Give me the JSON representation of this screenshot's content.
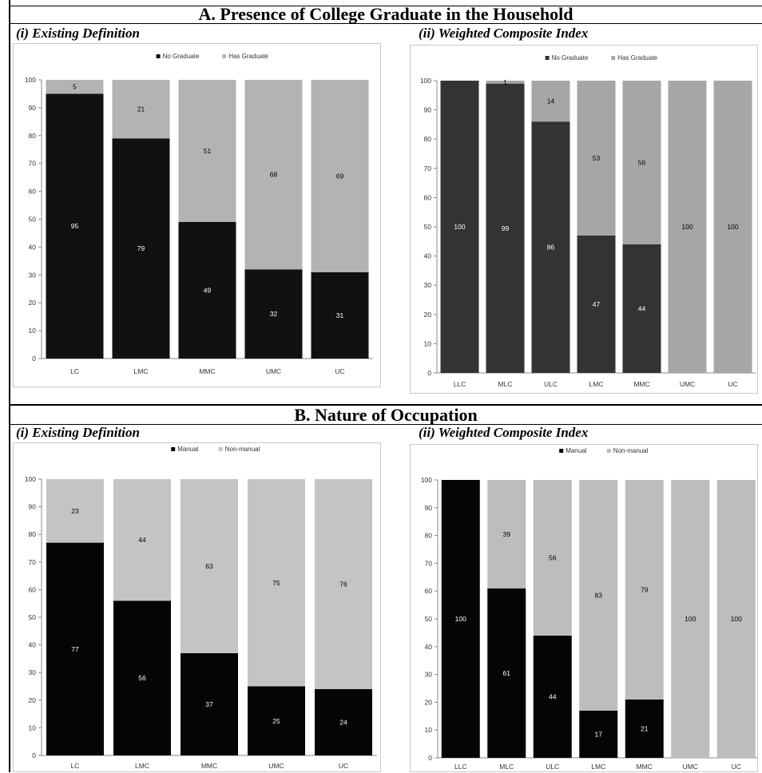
{
  "sections": [
    {
      "title": "A.  Presence of College Graduate in the Household",
      "panels": [
        {
          "title": "(i)  Existing Definition"
        },
        {
          "title": "(ii)  Weighted Composite Index"
        }
      ]
    },
    {
      "title": "B.  Nature of Occupation",
      "panels": [
        {
          "title": "(i)  Existing Definition"
        },
        {
          "title": "(ii)  Weighted Composite Index"
        }
      ]
    }
  ],
  "chart_data": [
    {
      "type": "bar",
      "stacked": true,
      "title": "",
      "xlabel": "",
      "ylabel": "",
      "categories": [
        "LC",
        "LMC",
        "MMC",
        "UMC",
        "UC"
      ],
      "series": [
        {
          "name": "No Graduate",
          "color": "#111111",
          "label_color": "#ffffff",
          "values": [
            95,
            79,
            49,
            32,
            31
          ]
        },
        {
          "name": "Has Graduate",
          "color": "#b3b3b3",
          "label_color": "#000000",
          "values": [
            5,
            21,
            51,
            68,
            69
          ]
        }
      ],
      "ylim": [
        0,
        100
      ],
      "yticks": [
        "0",
        "10",
        "20",
        "30",
        "40",
        "50",
        "60",
        "70",
        "80",
        "90",
        "100"
      ],
      "legend": "top-center",
      "grid": false
    },
    {
      "type": "bar",
      "stacked": true,
      "title": "",
      "xlabel": "",
      "ylabel": "",
      "categories": [
        "LLC",
        "MLC",
        "ULC",
        "LMC",
        "MMC",
        "UMC",
        "UC"
      ],
      "series": [
        {
          "name": "No Graduate",
          "color": "#333333",
          "label_color": "#ffffff",
          "values": [
            100,
            99,
            86,
            47,
            44,
            0,
            0
          ]
        },
        {
          "name": "Has Graduate",
          "color": "#a6a6a6",
          "label_color": "#000000",
          "values": [
            0,
            1,
            14,
            53,
            56,
            100,
            100
          ]
        }
      ],
      "ylim": [
        0,
        100
      ],
      "yticks": [
        "0",
        "10",
        "20",
        "30",
        "40",
        "50",
        "60",
        "70",
        "80",
        "90",
        "100"
      ],
      "legend": "top-center",
      "grid": false
    },
    {
      "type": "bar",
      "stacked": true,
      "title": "",
      "xlabel": "",
      "ylabel": "",
      "categories": [
        "LC",
        "LMC",
        "MMC",
        "UMC",
        "UC"
      ],
      "series": [
        {
          "name": "Manual",
          "color": "#050505",
          "label_color": "#ffffff",
          "values": [
            77,
            56,
            37,
            25,
            24
          ]
        },
        {
          "name": "Non-manual",
          "color": "#c4c4c4",
          "label_color": "#000000",
          "values": [
            23,
            44,
            63,
            75,
            76
          ]
        }
      ],
      "ylim": [
        0,
        100
      ],
      "yticks": [
        "0",
        "10",
        "20",
        "30",
        "40",
        "50",
        "60",
        "70",
        "80",
        "90",
        "100"
      ],
      "legend": "top-center",
      "grid": false
    },
    {
      "type": "bar",
      "stacked": true,
      "title": "",
      "xlabel": "",
      "ylabel": "",
      "categories": [
        "LLC",
        "MLC",
        "ULC",
        "LMC",
        "MMC",
        "UMC",
        "UC"
      ],
      "series": [
        {
          "name": "Manual",
          "color": "#050505",
          "label_color": "#ffffff",
          "values": [
            100,
            61,
            44,
            17,
            21,
            0,
            0
          ]
        },
        {
          "name": "Non-manual",
          "color": "#bdbdbd",
          "label_color": "#000000",
          "values": [
            0,
            39,
            56,
            83,
            79,
            100,
            100
          ]
        }
      ],
      "ylim": [
        0,
        100
      ],
      "yticks": [
        "0",
        "10",
        "20",
        "30",
        "40",
        "50",
        "60",
        "70",
        "80",
        "90",
        "100"
      ],
      "legend": "top-center",
      "grid": false
    }
  ]
}
